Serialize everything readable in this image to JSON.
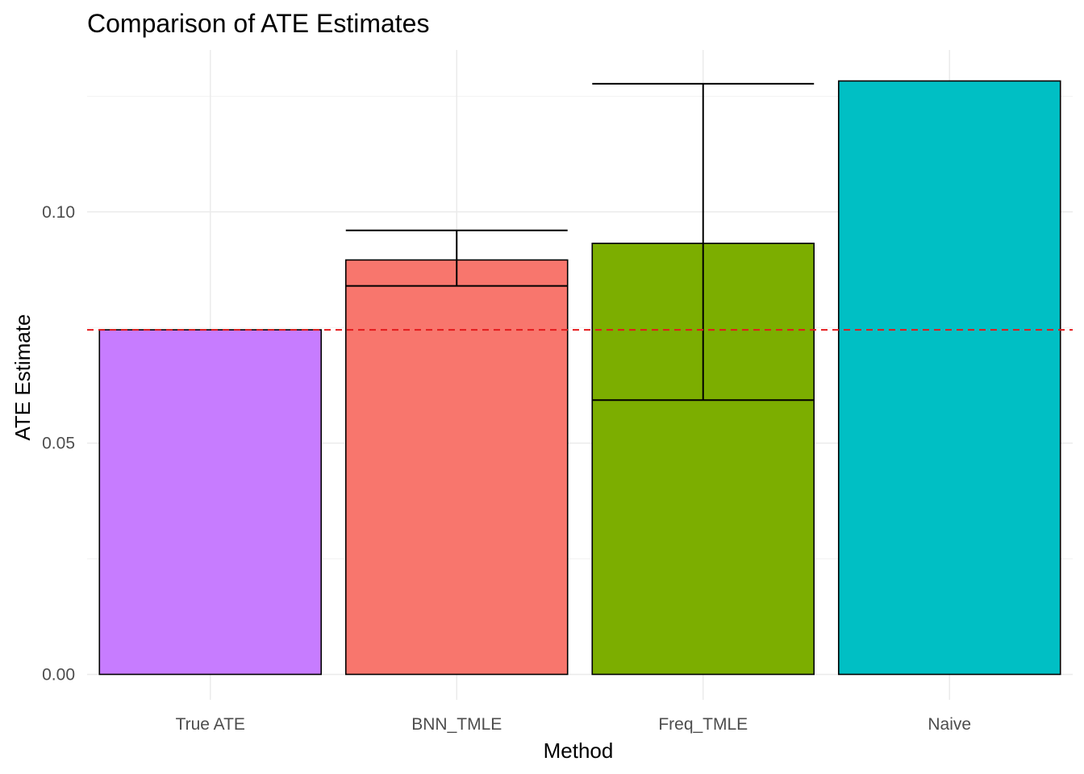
{
  "chart_data": {
    "type": "bar",
    "title": "Comparison of ATE Estimates",
    "xlabel": "Method",
    "ylabel": "ATE Estimate",
    "categories": [
      "True ATE",
      "BNN_TMLE",
      "Freq_TMLE",
      "Naive"
    ],
    "values": [
      0.0745,
      0.0896,
      0.0932,
      0.1283
    ],
    "error_bars": [
      null,
      {
        "lower": 0.084,
        "upper": 0.096
      },
      {
        "lower": 0.0593,
        "upper": 0.1277
      },
      null
    ],
    "colors": [
      "#C77CFF",
      "#F8766D",
      "#7CAE00",
      "#00BFC4"
    ],
    "reference_line": {
      "value": 0.0745,
      "color": "#E41A1C",
      "style": "dashed"
    },
    "ylim": [
      -0.0055,
      0.135
    ],
    "yticks": [
      0.0,
      0.05,
      0.1
    ],
    "ytick_labels": [
      "0.00",
      "0.05",
      "0.10"
    ],
    "grid": true,
    "legend": "none"
  }
}
